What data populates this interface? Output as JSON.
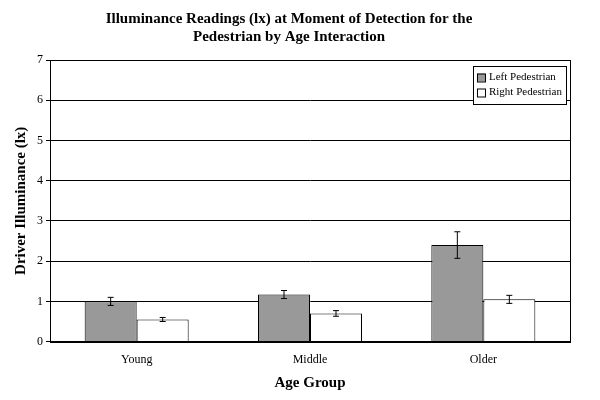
{
  "chart_data": {
    "type": "bar",
    "title": [
      "Illuminance Readings (lx) at Moment of Detection for the",
      "Pedestrian by Age Interaction"
    ],
    "x_label": "Age Group",
    "y_label": "Driver Illuminance (lx)",
    "categories": [
      "Young",
      "Middle",
      "Older"
    ],
    "series": [
      {
        "name": "Left Pedestrian",
        "color": "#999999",
        "values": [
          1.0,
          1.17,
          2.4
        ],
        "errors": [
          0.1,
          0.1,
          0.33
        ]
      },
      {
        "name": "Right Pedestrian",
        "color": "#ffffff",
        "values": [
          0.55,
          0.7,
          1.05
        ],
        "errors": [
          0.05,
          0.07,
          0.1
        ]
      }
    ],
    "ylim": [
      0,
      7
    ],
    "yticks": [
      0,
      1,
      2,
      3,
      4,
      5,
      6,
      7
    ],
    "grid": true,
    "legend": "upper right"
  }
}
